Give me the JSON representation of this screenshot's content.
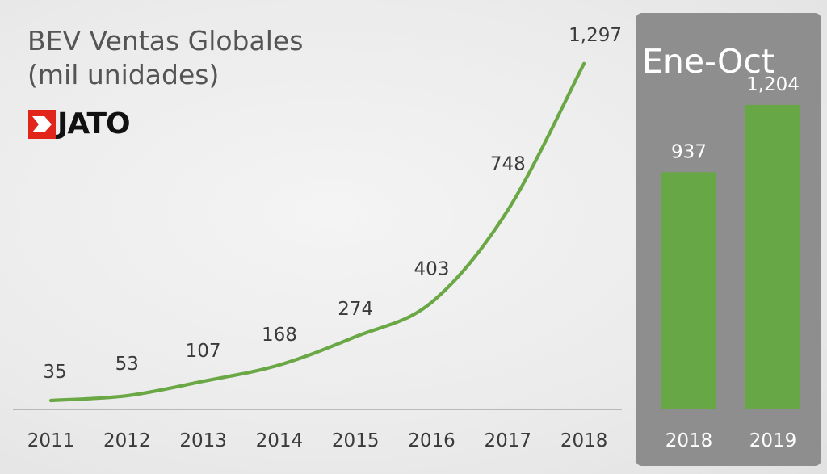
{
  "title_line1": "BEV Ventas Globales",
  "title_line2": "(mil unidades)",
  "logo_text": "JATO",
  "colors": {
    "line": "#6aa745",
    "bar": "#67a745",
    "panel": "#8e8e8e"
  },
  "panel_title": "Ene-Oct",
  "chart_data": [
    {
      "type": "line",
      "title": "BEV Ventas Globales (mil unidades)",
      "x": [
        "2011",
        "2012",
        "2013",
        "2014",
        "2015",
        "2016",
        "2017",
        "2018"
      ],
      "series": [
        {
          "values": [
            35,
            53,
            107,
            168,
            274,
            403,
            748,
            1297
          ],
          "labels": [
            "35",
            "53",
            "107",
            "168",
            "274",
            "403",
            "748",
            "1,297"
          ]
        }
      ],
      "grid": false
    },
    {
      "type": "bar",
      "title": "Ene-Oct",
      "categories": [
        "2018",
        "2019"
      ],
      "values": [
        937,
        1204
      ],
      "labels": [
        "937",
        "1,204"
      ],
      "grid": false
    }
  ]
}
